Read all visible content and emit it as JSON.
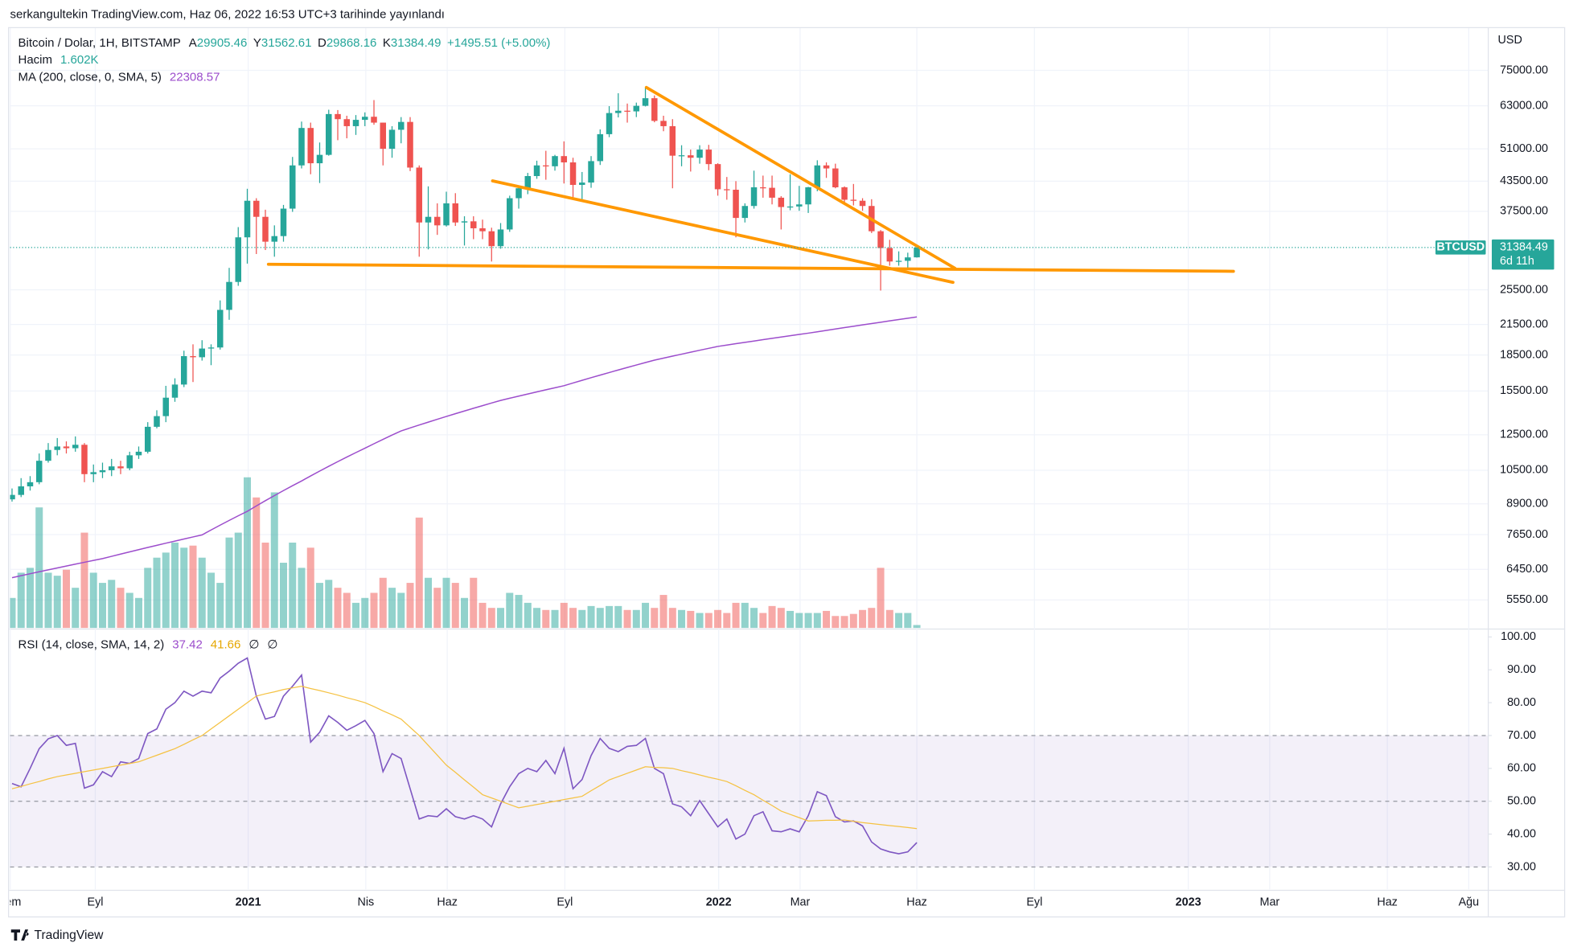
{
  "header": {
    "text": "serkangultekin TradingView.com, Haz 06, 2022 16:53 UTC+3 tarihinde yayınlandı"
  },
  "footer": {
    "logo": "TradingView"
  },
  "chart_data": [
    {
      "type": "candlestick",
      "title": "Bitcoin / Dolar, 1H, BITSTAMP",
      "ohlc_legend": [
        {
          "label": "A",
          "value": 29905.46
        },
        {
          "label": "Y",
          "value": 31562.61
        },
        {
          "label": "D",
          "value": 29868.16
        },
        {
          "label": "K",
          "value": 31384.49
        }
      ],
      "change": "+1495.51 (+5.00%)",
      "volume_label": "Hacim",
      "volume_legend": "1.602K",
      "ma_label": "MA (200, close, 0, SMA, 5)",
      "ma_legend": 22308.57,
      "axis_unit": "USD",
      "price_tag": {
        "symbol": "BTCUSD",
        "price": 31384.49,
        "countdown": "6d 11h"
      },
      "up_color": "#26a69a",
      "down_color": "#ef5350",
      "ma_color": "#9c4dcc",
      "log_scale": true,
      "grid": true,
      "xlim": [
        -0.22,
        163.1
      ],
      "ylim": [
        4833,
        92300
      ],
      "xticks": [
        {
          "value": -0.2,
          "label": "Tem"
        },
        {
          "value": 9.2,
          "label": "Eyl"
        },
        {
          "value": 26.1,
          "label": "2021"
        },
        {
          "value": 39.1,
          "label": "Nis"
        },
        {
          "value": 48.1,
          "label": "Haz"
        },
        {
          "value": 61.1,
          "label": "Eyl"
        },
        {
          "value": 78.1,
          "label": "2022"
        },
        {
          "value": 87.1,
          "label": "Mar"
        },
        {
          "value": 100,
          "label": "Haz"
        },
        {
          "value": 113,
          "label": "Eyl"
        },
        {
          "value": 130,
          "label": "2023"
        },
        {
          "value": 139,
          "label": "Mar"
        },
        {
          "value": 152,
          "label": "Haz"
        },
        {
          "value": 161,
          "label": "Ağu"
        }
      ],
      "yticks": [
        {
          "value": 75000,
          "label": "75000.00"
        },
        {
          "value": 63000,
          "label": "63000.00"
        },
        {
          "value": 51000,
          "label": "51000.00"
        },
        {
          "value": 43500,
          "label": "43500.00"
        },
        {
          "value": 37500,
          "label": "37500.00"
        },
        {
          "value": 25500,
          "label": "25500.00"
        },
        {
          "value": 21500,
          "label": "21500.00"
        },
        {
          "value": 18500,
          "label": "18500.00"
        },
        {
          "value": 15500,
          "label": "15500.00"
        },
        {
          "value": 12500,
          "label": "12500.00"
        },
        {
          "value": 10500,
          "label": "10500.00"
        },
        {
          "value": 8900,
          "label": "8900.00"
        },
        {
          "value": 7650,
          "label": "7650.00"
        },
        {
          "value": 6450,
          "label": "6450.00"
        },
        {
          "value": 5550,
          "label": "5550.00"
        }
      ],
      "ohlc": [
        [
          9100,
          9600,
          9000,
          9300
        ],
        [
          9300,
          10100,
          9200,
          9700
        ],
        [
          9700,
          10200,
          9500,
          9900
        ],
        [
          9900,
          11400,
          9800,
          11000
        ],
        [
          11000,
          12000,
          10900,
          11600
        ],
        [
          11600,
          12300,
          11300,
          11800
        ],
        [
          11800,
          12100,
          11400,
          11700
        ],
        [
          11700,
          12400,
          11500,
          11900
        ],
        [
          11900,
          12000,
          9900,
          10300
        ],
        [
          10300,
          10800,
          9900,
          10400
        ],
        [
          10400,
          10900,
          10100,
          10500
        ],
        [
          10500,
          11100,
          10200,
          10700
        ],
        [
          10700,
          11000,
          10300,
          10600
        ],
        [
          10600,
          11500,
          10500,
          11300
        ],
        [
          11300,
          11800,
          11100,
          11500
        ],
        [
          11500,
          13300,
          11400,
          13000
        ],
        [
          13000,
          14100,
          12900,
          13700
        ],
        [
          13700,
          15900,
          13300,
          15000
        ],
        [
          15000,
          16500,
          14700,
          16000
        ],
        [
          16000,
          18900,
          15800,
          18400
        ],
        [
          18400,
          19500,
          16200,
          18300
        ],
        [
          18300,
          19900,
          18000,
          19100
        ],
        [
          19100,
          19500,
          17600,
          19200
        ],
        [
          19200,
          24200,
          19000,
          23100
        ],
        [
          23100,
          28400,
          22000,
          26500
        ],
        [
          26500,
          34700,
          26000,
          33000
        ],
        [
          33000,
          41900,
          29000,
          39500
        ],
        [
          39500,
          40000,
          30400,
          36500
        ],
        [
          36500,
          37800,
          31000,
          32300
        ],
        [
          32300,
          35000,
          30000,
          33200
        ],
        [
          33200,
          38700,
          32300,
          38000
        ],
        [
          38000,
          49000,
          37400,
          47000
        ],
        [
          47000,
          58300,
          46300,
          56500
        ],
        [
          56500,
          58000,
          45000,
          47500
        ],
        [
          47500,
          52600,
          43100,
          49500
        ],
        [
          49500,
          61800,
          49300,
          60500
        ],
        [
          60500,
          61700,
          53200,
          59000
        ],
        [
          59000,
          60000,
          53700,
          57000
        ],
        [
          57000,
          60200,
          54600,
          58800
        ],
        [
          58800,
          61000,
          57000,
          59700
        ],
        [
          59700,
          64800,
          57400,
          58000
        ],
        [
          58000,
          58000,
          47000,
          51000
        ],
        [
          51000,
          57000,
          48800,
          56000
        ],
        [
          56000,
          59600,
          52400,
          58200
        ],
        [
          58200,
          59600,
          45700,
          46500
        ],
        [
          46500,
          47000,
          30000,
          35500
        ],
        [
          35500,
          42400,
          31100,
          36500
        ],
        [
          36500,
          39000,
          33400,
          35000
        ],
        [
          35000,
          41300,
          34800,
          39000
        ],
        [
          39000,
          41000,
          34900,
          35500
        ],
        [
          35500,
          36600,
          31700,
          35700
        ],
        [
          35700,
          36600,
          32700,
          34500
        ],
        [
          34500,
          36000,
          32700,
          34000
        ],
        [
          34000,
          34600,
          29300,
          31600
        ],
        [
          31600,
          35400,
          31200,
          34300
        ],
        [
          34300,
          40500,
          33900,
          40000
        ],
        [
          40000,
          42600,
          38000,
          42000
        ],
        [
          42000,
          45300,
          40800,
          44600
        ],
        [
          44600,
          48100,
          44000,
          47000
        ],
        [
          47000,
          50500,
          43800,
          46800
        ],
        [
          46800,
          49500,
          45800,
          49200
        ],
        [
          49200,
          52900,
          43000,
          47700
        ],
        [
          47700,
          48800,
          40000,
          42700
        ],
        [
          42700,
          45500,
          39600,
          43200
        ],
        [
          43200,
          49200,
          42100,
          48000
        ],
        [
          48000,
          56100,
          47100,
          54800
        ],
        [
          54800,
          62900,
          54000,
          60800
        ],
        [
          60800,
          67000,
          59500,
          61500
        ],
        [
          61500,
          63700,
          58000,
          61300
        ],
        [
          61300,
          64000,
          59600,
          63000
        ],
        [
          63000,
          69000,
          62800,
          65400
        ],
        [
          65400,
          66300,
          58100,
          58500
        ],
        [
          58500,
          60000,
          55600,
          57000
        ],
        [
          57000,
          59000,
          42000,
          49300
        ],
        [
          49300,
          51900,
          46800,
          49400
        ],
        [
          49400,
          50800,
          45600,
          48800
        ],
        [
          48800,
          51900,
          47400,
          50800
        ],
        [
          50800,
          52000,
          45900,
          47300
        ],
        [
          47300,
          47500,
          40500,
          41800
        ],
        [
          41800,
          44400,
          39700,
          41700
        ],
        [
          41700,
          43500,
          33000,
          36300
        ],
        [
          36300,
          39000,
          35500,
          38500
        ],
        [
          38500,
          45800,
          38000,
          42200
        ],
        [
          42200,
          44700,
          40100,
          42100
        ],
        [
          42100,
          44700,
          38800,
          40100
        ],
        [
          40100,
          40400,
          34300,
          38300
        ],
        [
          38300,
          45000,
          37700,
          38400
        ],
        [
          38400,
          42500,
          37600,
          38800
        ],
        [
          38800,
          42300,
          37200,
          42200
        ],
        [
          42200,
          48200,
          41400,
          47000
        ],
        [
          47000,
          47700,
          44200,
          46300
        ],
        [
          46300,
          47400,
          42000,
          42200
        ],
        [
          42200,
          42400,
          39200,
          39700
        ],
        [
          39700,
          42900,
          38600,
          39500
        ],
        [
          39500,
          40000,
          37600,
          38500
        ],
        [
          38500,
          39800,
          33700,
          34000
        ],
        [
          34000,
          34200,
          25400,
          31300
        ],
        [
          31300,
          32600,
          28700,
          29300
        ],
        [
          29300,
          30800,
          28700,
          29400
        ],
        [
          29400,
          30600,
          28200,
          29900
        ],
        [
          29905.46,
          31562.61,
          29868.16,
          31384.49
        ]
      ],
      "volume": [
        16,
        29.4,
        32,
        64.1,
        29.4,
        27.8,
        31,
        21.4,
        50.7,
        29.4,
        24,
        25.6,
        21.4,
        18.7,
        16,
        32,
        37.4,
        40.1,
        45.4,
        42.7,
        43.8,
        37.4,
        29.4,
        24,
        48.1,
        50.7,
        80.1,
        69.4,
        45.4,
        72.1,
        34.7,
        45.4,
        32,
        42.7,
        24,
        25.6,
        21.4,
        18.7,
        13.4,
        16,
        18.7,
        26.7,
        21.4,
        18.7,
        24,
        58.7,
        26.7,
        21.4,
        26.7,
        24,
        16,
        26.7,
        13.4,
        10.7,
        10.7,
        18.7,
        17.6,
        13.4,
        10.7,
        9.6,
        9.6,
        13.4,
        10.7,
        9.6,
        11.7,
        10.7,
        11.7,
        11.7,
        9.6,
        9.6,
        13.4,
        10.7,
        17.6,
        10.7,
        9.6,
        9.1,
        8,
        8,
        9.6,
        8,
        13.4,
        13.4,
        10.7,
        8,
        11.7,
        10.7,
        9.1,
        8,
        8,
        8,
        9.1,
        6.4,
        6.4,
        7.5,
        9.6,
        10.7,
        32,
        9.6,
        8,
        8,
        1.602
      ],
      "ma": [
        6190,
        6251,
        6312,
        6373,
        6434,
        6495,
        6556,
        6617,
        6678,
        6739,
        6800,
        6876,
        6953,
        7029,
        7106,
        7182,
        7258,
        7335,
        7411,
        7488,
        7564,
        7640,
        7828,
        8016,
        8204,
        8392,
        8580,
        8810,
        9040,
        9270,
        9500,
        9730,
        9960,
        10209,
        10457,
        10706,
        10954,
        11203,
        11451,
        11700,
        11960,
        12220,
        12480,
        12740,
        12927,
        13115,
        13302,
        13489,
        13676,
        13864,
        14051,
        14238,
        14425,
        14613,
        14800,
        14959,
        15117,
        15276,
        15434,
        15593,
        15751,
        15910,
        16123,
        16336,
        16549,
        16762,
        16975,
        17188,
        17401,
        17614,
        17827,
        18040,
        18220,
        18400,
        18580,
        18760,
        18940,
        19120,
        19300,
        19430,
        19560,
        19690,
        19820,
        19950,
        20080,
        20210,
        20340,
        20470,
        20600,
        20742,
        20885,
        21027,
        21169,
        21312,
        21454,
        21596,
        21739,
        21881,
        22024,
        22166,
        22308.57
      ]
    },
    {
      "type": "line",
      "title": "RSI (14, close, SMA, 14, 2)",
      "legend_values": [
        37.42,
        41.66
      ],
      "legend_na": [
        "∅",
        "∅"
      ],
      "band": [
        30,
        70
      ],
      "midline": 50,
      "band_color": "#7e57c2",
      "ylim": [
        23.2,
        102.1
      ],
      "yticks": [
        {
          "value": 100,
          "label": "100.00"
        },
        {
          "value": 90,
          "label": "90.00"
        },
        {
          "value": 80,
          "label": "80.00"
        },
        {
          "value": 70,
          "label": "70.00"
        },
        {
          "value": 60,
          "label": "60.00"
        },
        {
          "value": 50,
          "label": "50.00"
        },
        {
          "value": 40,
          "label": "40.00"
        },
        {
          "value": 30,
          "label": "30.00"
        }
      ],
      "series": [
        {
          "name": "RSI",
          "color": "#7e57c2",
          "values": [
            55.4,
            54.4,
            60,
            66,
            69,
            70,
            67,
            67.6,
            54,
            55,
            59,
            57.5,
            62,
            61.5,
            63,
            70.6,
            72,
            78,
            80,
            83.5,
            82,
            83.5,
            83,
            87.5,
            89.6,
            92,
            93.6,
            82,
            75,
            75.8,
            82,
            85,
            88.4,
            68,
            71,
            76,
            74,
            71.6,
            73,
            74.6,
            70.6,
            59,
            64.5,
            63,
            53.8,
            44.6,
            45.6,
            45.3,
            47.7,
            45.3,
            44.6,
            45.6,
            44.6,
            42.2,
            49.2,
            54.4,
            58.4,
            60,
            59,
            62.4,
            58.4,
            66.1,
            53.8,
            56.6,
            63.9,
            69.1,
            66.1,
            65.1,
            66.7,
            67,
            69.1,
            60,
            58.4,
            49.2,
            48.3,
            45.6,
            50.2,
            46.2,
            42.2,
            44.6,
            38.5,
            40,
            45.6,
            46.8,
            41,
            40.7,
            41.6,
            40.7,
            45.6,
            52.9,
            51.7,
            45.3,
            43.7,
            44,
            42.5,
            37.6,
            35.5,
            34.6,
            34,
            34.6,
            37.42
          ]
        },
        {
          "name": "RSI-based MA",
          "color": "#f5c242",
          "values": [
            53.8,
            54.5,
            55.3,
            56.0,
            56.8,
            57.5,
            58.0,
            58.5,
            59.0,
            59.5,
            60.0,
            60.5,
            61.0,
            61.5,
            62.0,
            63,
            64,
            65,
            66,
            67.3,
            68.7,
            70,
            72,
            74,
            76,
            78,
            80,
            82,
            82.7,
            83.3,
            84,
            84.5,
            85,
            84.3,
            83.7,
            83,
            82.3,
            81.5,
            80.8,
            80,
            78.8,
            77.5,
            76.3,
            75,
            72.5,
            70,
            67,
            64,
            61,
            58.8,
            56.5,
            54.3,
            52,
            51,
            50,
            49,
            48,
            48.5,
            49,
            49.5,
            50,
            50.5,
            51,
            51.5,
            53.2,
            54.8,
            56.5,
            57.5,
            58.5,
            59.5,
            60.5,
            60.3,
            60.2,
            60,
            59.3,
            58.7,
            58,
            57.3,
            56.7,
            56,
            54.7,
            53.3,
            52,
            50.3,
            48.7,
            47,
            46,
            45,
            44,
            44.1,
            44.2,
            44.2,
            44.3,
            43.9,
            43.5,
            43.2,
            42.9,
            42.6,
            42.3,
            42.0,
            41.66
          ]
        }
      ]
    }
  ]
}
